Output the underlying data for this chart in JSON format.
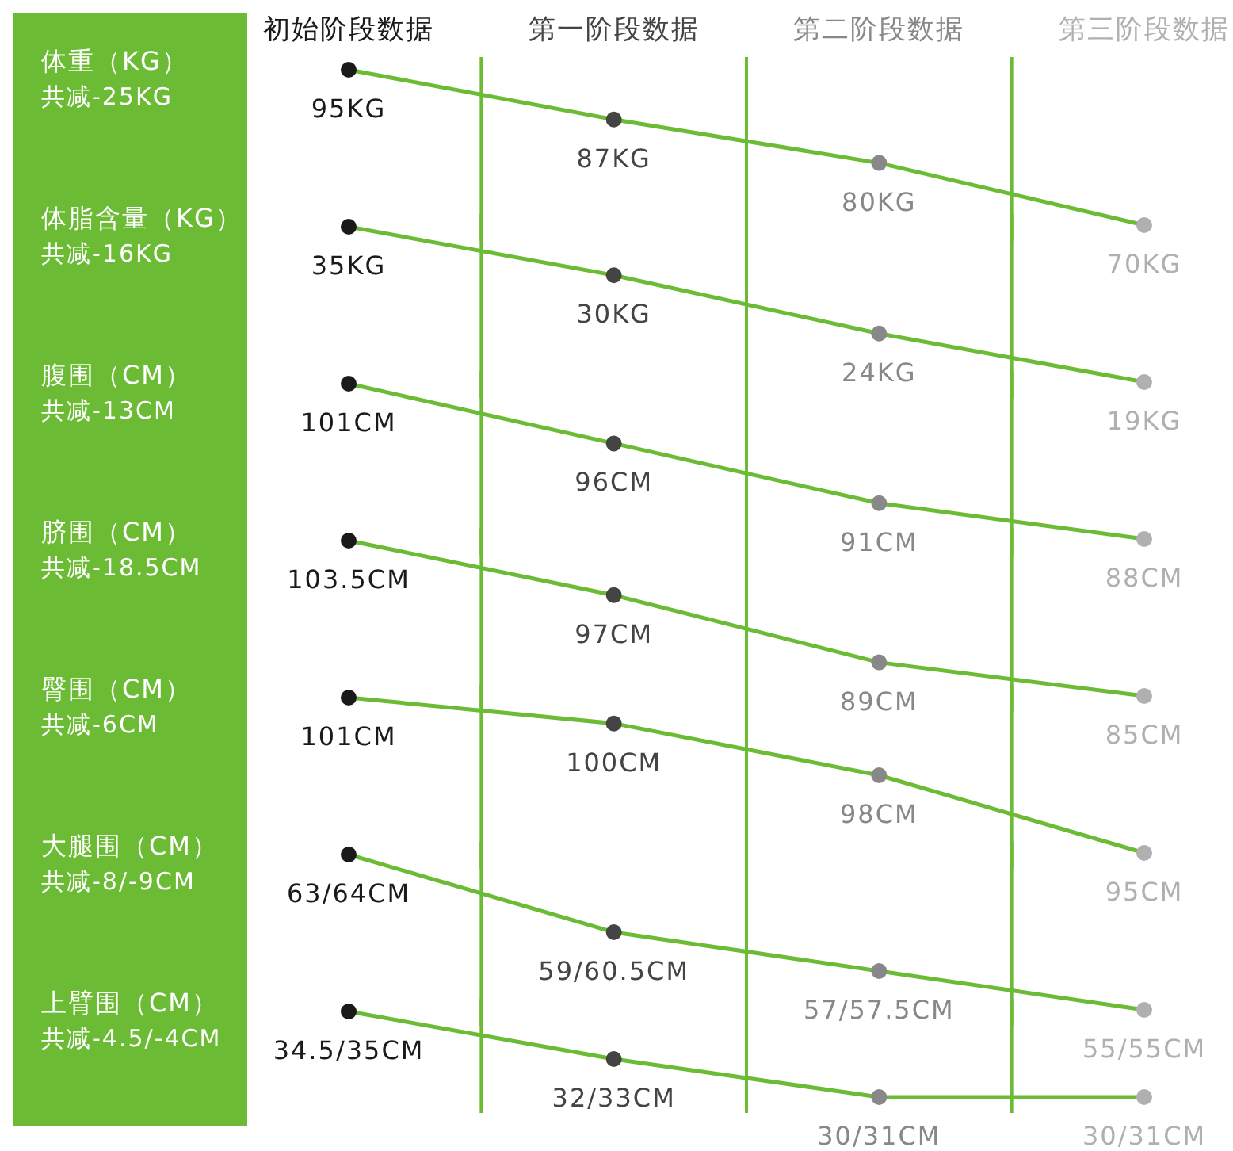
{
  "chart_data": [
    {
      "type": "line",
      "title": "体重（KG）",
      "subtitle": "共减-25KG",
      "categories": [
        "初始阶段数据",
        "第一阶段数据",
        "第二阶段数据",
        "第三阶段数据"
      ],
      "values": [
        95,
        87,
        80,
        70
      ],
      "value_labels": [
        "95KG",
        "87KG",
        "80KG",
        "70KG"
      ],
      "color": "#6cbb35",
      "colors": [
        "#1a1a1a",
        "#444444",
        "#888888",
        "#b0b0b0"
      ],
      "marker": "circle",
      "grid": "x",
      "tick_labels": "x"
    },
    {
      "type": "line",
      "title": "体脂含量（KG）",
      "subtitle": "共减-16KG",
      "categories": [
        null,
        null,
        null,
        null
      ],
      "values": [
        35,
        30,
        24,
        19
      ],
      "value_labels": [
        "35KG",
        "30KG",
        "24KG",
        "19KG"
      ],
      "color": "#6cbb35",
      "colors": [
        "#1a1a1a",
        "#444444",
        "#888888",
        "#b0b0b0"
      ],
      "marker": "circle",
      "grid": "x",
      "tick_labels": false
    },
    {
      "type": "line",
      "title": "腹围（CM）",
      "subtitle": "共减-13CM",
      "categories": [
        null,
        null,
        null,
        null
      ],
      "values": [
        101,
        96,
        91,
        88
      ],
      "value_labels": [
        "101CM",
        "96CM",
        "91CM",
        "88CM"
      ],
      "color": "#6cbb35",
      "colors": [
        "#1a1a1a",
        "#444444",
        "#888888",
        "#b0b0b0"
      ],
      "marker": "circle",
      "grid": "x",
      "tick_labels": false
    },
    {
      "type": "line",
      "title": "脐围（CM）",
      "subtitle": "共减-18.5CM",
      "categories": [
        null,
        null,
        null,
        null
      ],
      "values": [
        103.5,
        97,
        89,
        85
      ],
      "value_labels": [
        "103.5CM",
        "97CM",
        "89CM",
        "85CM"
      ],
      "color": "#6cbb35",
      "colors": [
        "#1a1a1a",
        "#444444",
        "#888888",
        "#b0b0b0"
      ],
      "marker": "circle",
      "grid": "x",
      "tick_labels": false
    },
    {
      "type": "line",
      "title": "臀围（CM）",
      "subtitle": "共减-6CM",
      "categories": [
        null,
        null,
        null,
        null
      ],
      "values": [
        101,
        100,
        98,
        95
      ],
      "value_labels": [
        "101CM",
        "100CM",
        "98CM",
        "95CM"
      ],
      "color": "#6cbb35",
      "colors": [
        "#1a1a1a",
        "#444444",
        "#888888",
        "#b0b0b0"
      ],
      "marker": "circle",
      "grid": "x",
      "tick_labels": false
    },
    {
      "type": "line",
      "title": "大腿围（CM）",
      "subtitle": "共减-8/-9CM",
      "categories": [
        null,
        null,
        null,
        null
      ],
      "values": [
        63,
        59,
        57,
        55
      ],
      "value_labels": [
        "63/64CM",
        "59/60.5CM",
        "57/57.5CM",
        "55/55CM"
      ],
      "color": "#6cbb35",
      "colors": [
        "#1a1a1a",
        "#444444",
        "#888888",
        "#b0b0b0"
      ],
      "marker": "circle",
      "grid": "x",
      "tick_labels": false
    },
    {
      "type": "line",
      "title": "上臂围（CM）",
      "subtitle": "共减-4.5/-4CM",
      "categories": [
        null,
        null,
        null,
        null
      ],
      "values": [
        34.5,
        32,
        30,
        30
      ],
      "value_labels": [
        "34.5/35CM",
        "32/33CM",
        "30/31CM",
        "30/31CM"
      ],
      "color": "#6cbb35",
      "colors": [
        "#1a1a1a",
        "#444444",
        "#888888",
        "#b0b0b0"
      ],
      "marker": "circle",
      "grid": "x",
      "tick_labels": false
    }
  ]
}
